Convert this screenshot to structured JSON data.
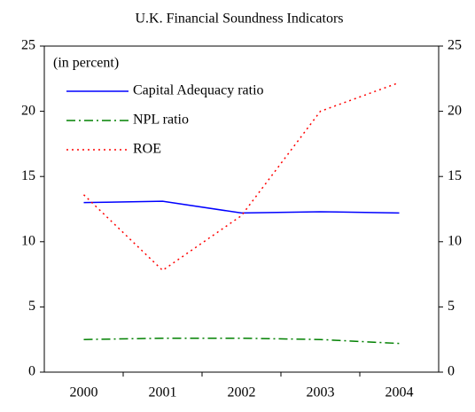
{
  "chart_data": {
    "type": "line",
    "title": "U.K. Financial Soundness Indicators",
    "annotation": "(in percent)",
    "categories": [
      "2000",
      "2001",
      "2002",
      "2003",
      "2004"
    ],
    "series": [
      {
        "name": "Capital Adequacy ratio",
        "color": "#0000ff",
        "dash": "solid",
        "values": [
          13.0,
          13.1,
          12.2,
          12.3,
          12.2
        ]
      },
      {
        "name": "NPL ratio",
        "color": "#008000",
        "dash": "dashdot",
        "values": [
          2.5,
          2.6,
          2.6,
          2.5,
          2.2
        ]
      },
      {
        "name": "ROE",
        "color": "#ff0000",
        "dash": "dotted",
        "values": [
          13.6,
          7.8,
          12.0,
          20.0,
          22.2
        ]
      }
    ],
    "ylim": [
      0,
      25
    ],
    "yticks": [
      0,
      5,
      10,
      15,
      20,
      25
    ],
    "y2lim": [
      0,
      25
    ],
    "y2ticks": [
      0,
      5,
      10,
      15,
      20,
      25
    ],
    "legend": "upper left",
    "grid": false
  }
}
